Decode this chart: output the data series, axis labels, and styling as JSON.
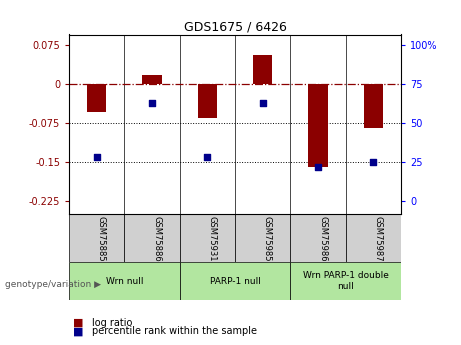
{
  "title": "GDS1675 / 6426",
  "samples": [
    "GSM75885",
    "GSM75886",
    "GSM75931",
    "GSM75985",
    "GSM75986",
    "GSM75987"
  ],
  "log_ratios": [
    -0.055,
    0.018,
    -0.065,
    0.055,
    -0.16,
    -0.085
  ],
  "percentile_ranks": [
    28,
    63,
    28,
    63,
    22,
    25
  ],
  "group_boundaries": [
    [
      0,
      1,
      "Wrn null"
    ],
    [
      2,
      3,
      "PARP-1 null"
    ],
    [
      4,
      5,
      "Wrn PARP-1 double\nnull"
    ]
  ],
  "ylim_left": [
    -0.25,
    0.095
  ],
  "yticks_left": [
    0.075,
    0,
    -0.075,
    -0.15,
    -0.225
  ],
  "yticks_right": [
    100,
    75,
    50,
    25,
    0
  ],
  "ytick_right_labels": [
    "100%",
    "75",
    "50",
    "25",
    "0"
  ],
  "hlines": [
    -0.075,
    -0.15
  ],
  "bar_color": "#8b0000",
  "scatter_color": "#00008b",
  "group_box_color": "#b2e6a0",
  "sample_box_color": "#d0d0d0",
  "legend_bar_label": "log ratio",
  "legend_scatter_label": "percentile rank within the sample"
}
